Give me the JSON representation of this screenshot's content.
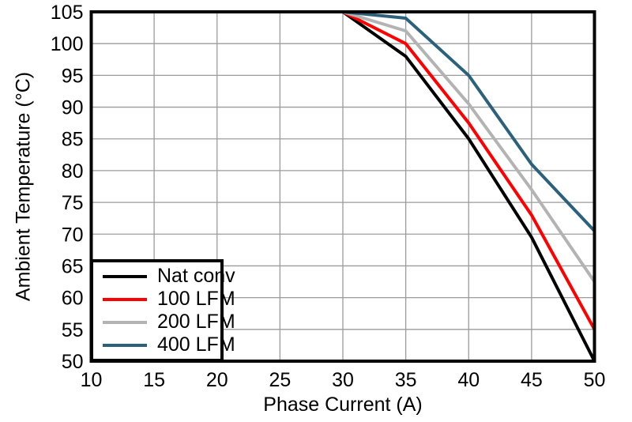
{
  "chart_data": {
    "type": "line",
    "title": "",
    "xlabel": "Phase Current (A)",
    "ylabel": "Ambient Temperature (°C)",
    "xlim": [
      10,
      50
    ],
    "ylim": [
      50,
      105
    ],
    "xticks": [
      10,
      15,
      20,
      25,
      30,
      35,
      40,
      45,
      50
    ],
    "yticks": [
      50,
      55,
      60,
      65,
      70,
      75,
      80,
      85,
      90,
      95,
      100,
      105
    ],
    "grid": true,
    "legend_position": "bottom-left",
    "x": [
      30,
      35,
      40,
      45,
      50
    ],
    "series": [
      {
        "name": "Nat conv",
        "color": "#000000",
        "values": [
          105,
          98,
          85,
          69.5,
          50
        ]
      },
      {
        "name": "100 LFM",
        "color": "#ff0000",
        "values": [
          105,
          100,
          87.5,
          73,
          55
        ]
      },
      {
        "name": "200 LFM",
        "color": "#b3b3b3",
        "values": [
          105,
          102,
          90.5,
          77,
          62.5
        ]
      },
      {
        "name": "400 LFM",
        "color": "#2b617b",
        "values": [
          105,
          104,
          95,
          81,
          70.5
        ]
      }
    ],
    "colors": {
      "grid": "#9b9b9b",
      "border": "#000000",
      "background": "#ffffff",
      "text": "#000000"
    }
  }
}
